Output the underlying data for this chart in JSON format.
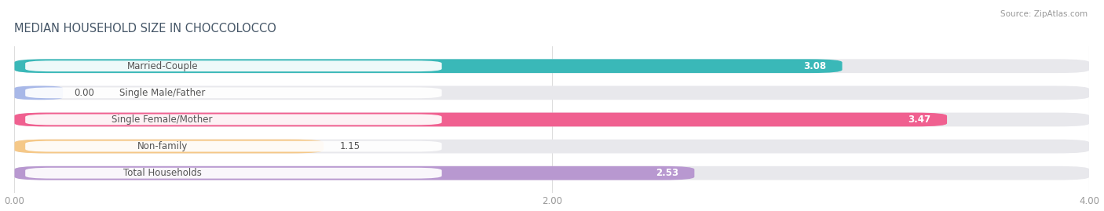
{
  "title": "MEDIAN HOUSEHOLD SIZE IN CHOCCOLOCCO",
  "source": "Source: ZipAtlas.com",
  "categories": [
    "Married-Couple",
    "Single Male/Father",
    "Single Female/Mother",
    "Non-family",
    "Total Households"
  ],
  "values": [
    3.08,
    0.0,
    3.47,
    1.15,
    2.53
  ],
  "bar_colors": [
    "#3ab8b8",
    "#a8b8e8",
    "#f06090",
    "#f5c888",
    "#b898d0"
  ],
  "label_text_colors": [
    "#3ab8b8",
    "#a8b8e8",
    "#f06090",
    "#f5c888",
    "#b898d0"
  ],
  "background_color": "#ffffff",
  "bar_background_color": "#e8e8ec",
  "xlim": [
    0,
    4.0
  ],
  "xticks": [
    0.0,
    2.0,
    4.0
  ],
  "xtick_labels": [
    "0.00",
    "2.00",
    "4.00"
  ],
  "title_fontsize": 10.5,
  "label_fontsize": 8.5,
  "value_fontsize": 8.5,
  "bar_height": 0.52,
  "value_label_color": "white",
  "value_outside_color": "#888888"
}
